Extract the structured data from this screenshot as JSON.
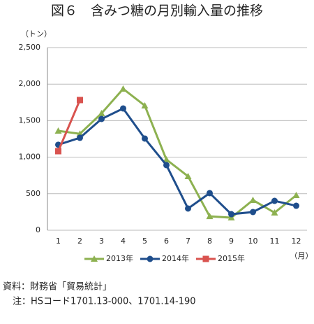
{
  "chart_data": {
    "type": "line",
    "title": "図６　含みつ糖の月別輸入量の推移",
    "y_unit": "（トン）",
    "x_unit": "（月）",
    "categories": [
      "1",
      "2",
      "3",
      "4",
      "5",
      "6",
      "7",
      "8",
      "9",
      "10",
      "11",
      "12"
    ],
    "series": [
      {
        "name": "2013年",
        "color": "#8db150",
        "marker": "triangle",
        "values": [
          1360,
          1320,
          1600,
          1935,
          1705,
          967,
          738,
          190,
          172,
          412,
          240,
          479
        ]
      },
      {
        "name": "2014年",
        "color": "#1f4e8c",
        "marker": "circle",
        "values": [
          1170,
          1265,
          1523,
          1667,
          1255,
          891,
          297,
          508,
          220,
          249,
          402,
          335
        ]
      },
      {
        "name": "2015年",
        "color": "#d9534f",
        "marker": "square",
        "values": [
          1082,
          1782,
          null,
          null,
          null,
          null,
          null,
          null,
          null,
          null,
          null,
          null
        ]
      }
    ],
    "ylim": [
      0,
      2500
    ],
    "yticks": [
      0,
      500,
      {
        "value": 1000,
        "label": "1,000"
      },
      {
        "value": 1500,
        "label": "1,500"
      },
      {
        "value": 2000,
        "label": "2,000"
      },
      {
        "value": 2500,
        "label": "2,500"
      }
    ],
    "grid": true,
    "legend": "bottom",
    "notes": [
      "資料：財務省「貿易統計」",
      "注：HSコード1701.13-000、1701.14-190"
    ]
  }
}
